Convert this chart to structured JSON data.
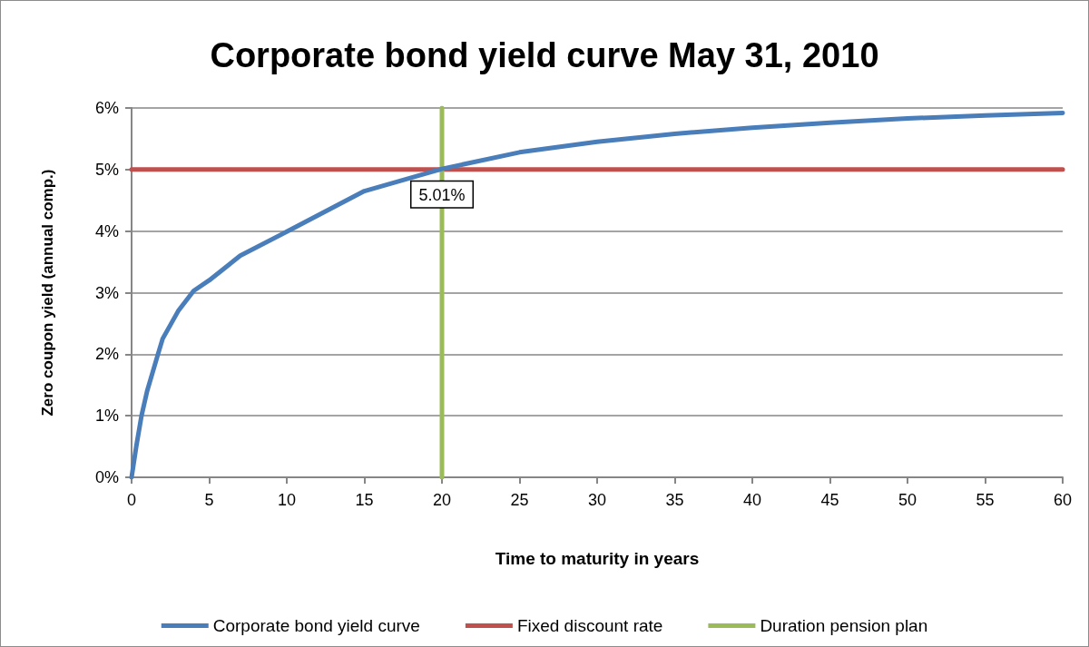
{
  "chart_data": {
    "type": "line",
    "title": "Corporate bond yield curve May 31, 2010",
    "xlabel": "Time to maturity in years",
    "ylabel": "Zero coupon yield (annual comp.)",
    "series": [
      {
        "name": "Corporate bond yield curve",
        "color": "#4a7ebb",
        "x": [
          0,
          0.3,
          0.64,
          1,
          1.7,
          2,
          3,
          4,
          5,
          7,
          10,
          15,
          20,
          25,
          30,
          35,
          40,
          45,
          50,
          55,
          60
        ],
        "values": [
          0,
          0.5,
          1.0,
          1.4,
          2.0,
          2.25,
          2.7,
          3.03,
          3.2,
          3.6,
          3.99,
          4.65,
          5.01,
          5.28,
          5.45,
          5.58,
          5.68,
          5.76,
          5.83,
          5.88,
          5.92
        ]
      },
      {
        "name": "Fixed discount rate",
        "color": "#c0504d",
        "x": [
          0,
          60
        ],
        "values": [
          5,
          5
        ]
      },
      {
        "name": "Duration pension plan",
        "color": "#9bbb59",
        "x": [
          20,
          20
        ],
        "values": [
          0,
          6
        ]
      }
    ],
    "annotations": [
      {
        "text": "5.01%",
        "x": 20,
        "y": 5.01
      }
    ],
    "xlim": [
      0,
      60
    ],
    "xticks": [
      0,
      5,
      10,
      15,
      20,
      25,
      30,
      35,
      40,
      45,
      50,
      55,
      60
    ],
    "ylim": [
      0,
      6
    ],
    "yticks": [
      {
        "value": 0,
        "label": "0%"
      },
      {
        "value": 1,
        "label": "1%"
      },
      {
        "value": 2,
        "label": "2%"
      },
      {
        "value": 3,
        "label": "3%"
      },
      {
        "value": 4,
        "label": "4%"
      },
      {
        "value": 5,
        "label": "5%"
      },
      {
        "value": 6,
        "label": "6%"
      }
    ],
    "grid": "y",
    "legend": "bottom",
    "marker": "none",
    "line_style": "solid"
  }
}
